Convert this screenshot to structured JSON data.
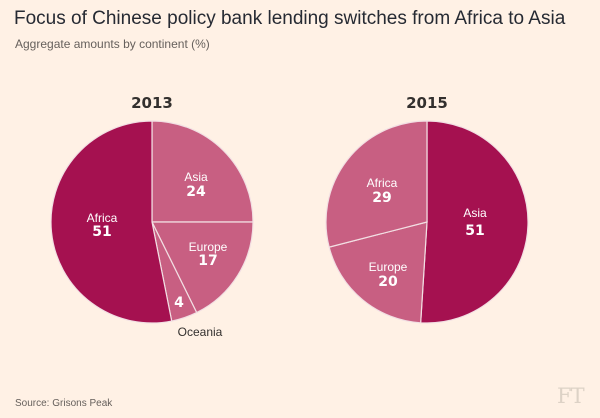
{
  "header": {
    "title": "Focus of Chinese policy bank lending switches from Africa to Asia",
    "subtitle": "Aggregate amounts by continent (%)"
  },
  "footer": {
    "source": "Source: Grisons Peak",
    "logo": "FT"
  },
  "colors": {
    "dark": "#a51150",
    "light": "#c85f82",
    "stroke": "#f2dfe3",
    "background": "#fff1e5"
  },
  "chart_data": [
    {
      "type": "pie",
      "title": "2013",
      "slices": [
        {
          "label": "Asia",
          "value": 24,
          "color": "#c85f82"
        },
        {
          "label": "Europe",
          "value": 17,
          "color": "#c85f82"
        },
        {
          "label": "Oceania",
          "value": 4,
          "color": "#c85f82"
        },
        {
          "label": "Africa",
          "value": 51,
          "color": "#a51150"
        }
      ]
    },
    {
      "type": "pie",
      "title": "2015",
      "slices": [
        {
          "label": "Asia",
          "value": 51,
          "color": "#a51150"
        },
        {
          "label": "Europe",
          "value": 20,
          "color": "#c85f82"
        },
        {
          "label": "Africa",
          "value": 29,
          "color": "#c85f82"
        }
      ]
    }
  ]
}
